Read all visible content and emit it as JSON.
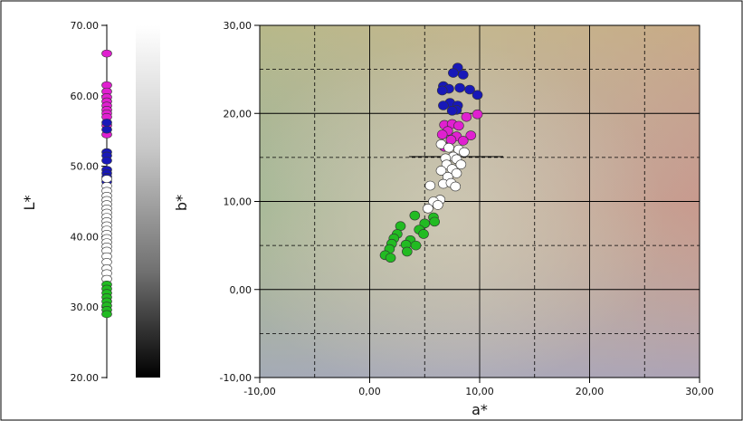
{
  "chart_data": [
    {
      "type": "scatter",
      "title": "",
      "ylabel": "L*",
      "ylim": [
        20,
        70
      ],
      "yticks": [
        "70.00",
        "60.00",
        "50.00",
        "40.00",
        "30.00",
        "20.00"
      ],
      "ytick_values": [
        70,
        60,
        50,
        40,
        30,
        20
      ],
      "series": [
        {
          "color": "#e020d0",
          "values": [
            66.0,
            61.5,
            60.6,
            59.8,
            59.2,
            58.6,
            58.0,
            57.5,
            57.0,
            55.8,
            54.5
          ]
        },
        {
          "color": "#1818b8",
          "values": [
            56.2,
            55.2,
            52.0,
            51.5,
            50.8,
            49.5,
            49.0,
            48.5,
            47.8
          ]
        },
        {
          "color": "#ffffff",
          "values": [
            48.2,
            47.2,
            46.5,
            45.8,
            45.2,
            44.6,
            44.0,
            43.4,
            42.8,
            42.2,
            41.6,
            41.0,
            40.4,
            39.8,
            39.2,
            38.6,
            38.0,
            37.2,
            36.4,
            35.5,
            34.8,
            34.0
          ]
        },
        {
          "color": "#22bb22",
          "values": [
            33.2,
            32.6,
            32.0,
            31.4,
            30.8,
            30.2,
            29.6,
            29.0
          ]
        }
      ]
    },
    {
      "type": "heatmap",
      "ylabel": "b*",
      "gradient": [
        "#ffffff",
        "#000000"
      ]
    },
    {
      "type": "scatter",
      "title": "",
      "xlabel": "a*",
      "ylabel": "",
      "xlim": [
        -10,
        30
      ],
      "ylim": [
        -10,
        30
      ],
      "xticks": [
        "-10,00",
        "0,00",
        "10,00",
        "20,00",
        "30,00"
      ],
      "xtick_values": [
        -10,
        0,
        10,
        20,
        30
      ],
      "yticks": [
        "30,00",
        "20,00",
        "10,00",
        "0,00",
        "-10,00"
      ],
      "ytick_values": [
        30,
        20,
        10,
        0,
        -10
      ],
      "grid": true,
      "series": [
        {
          "color": "#1818b8",
          "points": [
            [
              8.0,
              25.2
            ],
            [
              7.6,
              24.6
            ],
            [
              8.5,
              24.4
            ],
            [
              6.7,
              23.1
            ],
            [
              7.2,
              22.8
            ],
            [
              8.2,
              22.9
            ],
            [
              9.1,
              22.7
            ],
            [
              6.6,
              22.6
            ],
            [
              9.8,
              22.1
            ],
            [
              7.3,
              21.2
            ],
            [
              6.7,
              20.9
            ],
            [
              8.0,
              20.9
            ],
            [
              7.9,
              20.4
            ],
            [
              7.5,
              20.3
            ]
          ]
        },
        {
          "color": "#e020d0",
          "points": [
            [
              9.8,
              19.9
            ],
            [
              8.8,
              19.6
            ],
            [
              6.8,
              18.7
            ],
            [
              7.5,
              18.8
            ],
            [
              8.1,
              18.6
            ],
            [
              7.1,
              18.0
            ],
            [
              6.6,
              17.6
            ],
            [
              7.9,
              17.4
            ],
            [
              9.2,
              17.5
            ],
            [
              7.4,
              17.0
            ],
            [
              8.5,
              16.9
            ],
            [
              6.8,
              16.2
            ]
          ]
        },
        {
          "color": "#ffffff",
          "points": [
            [
              6.5,
              16.5
            ],
            [
              7.2,
              16.1
            ],
            [
              8.1,
              15.9
            ],
            [
              8.6,
              15.6
            ],
            [
              7.6,
              15.1
            ],
            [
              6.9,
              14.9
            ],
            [
              7.9,
              14.8
            ],
            [
              7.0,
              14.2
            ],
            [
              8.3,
              14.2
            ],
            [
              7.5,
              13.7
            ],
            [
              6.5,
              13.5
            ],
            [
              7.9,
              13.2
            ],
            [
              7.1,
              12.8
            ],
            [
              6.7,
              12.0
            ],
            [
              7.4,
              12.1
            ],
            [
              5.5,
              11.8
            ],
            [
              7.8,
              11.7
            ],
            [
              6.4,
              10.2
            ],
            [
              5.8,
              10.0
            ],
            [
              6.2,
              9.6
            ],
            [
              5.3,
              9.2
            ]
          ]
        },
        {
          "color": "#22bb22",
          "points": [
            [
              4.1,
              8.4
            ],
            [
              5.8,
              8.2
            ],
            [
              5.9,
              7.7
            ],
            [
              5.0,
              7.5
            ],
            [
              2.8,
              7.2
            ],
            [
              4.5,
              6.8
            ],
            [
              2.5,
              6.3
            ],
            [
              4.9,
              6.3
            ],
            [
              2.2,
              5.8
            ],
            [
              3.7,
              5.6
            ],
            [
              3.3,
              5.1
            ],
            [
              2.0,
              5.2
            ],
            [
              4.2,
              5.0
            ],
            [
              1.8,
              4.6
            ],
            [
              3.4,
              4.3
            ],
            [
              1.4,
              3.9
            ],
            [
              1.9,
              3.6
            ]
          ]
        }
      ]
    }
  ]
}
